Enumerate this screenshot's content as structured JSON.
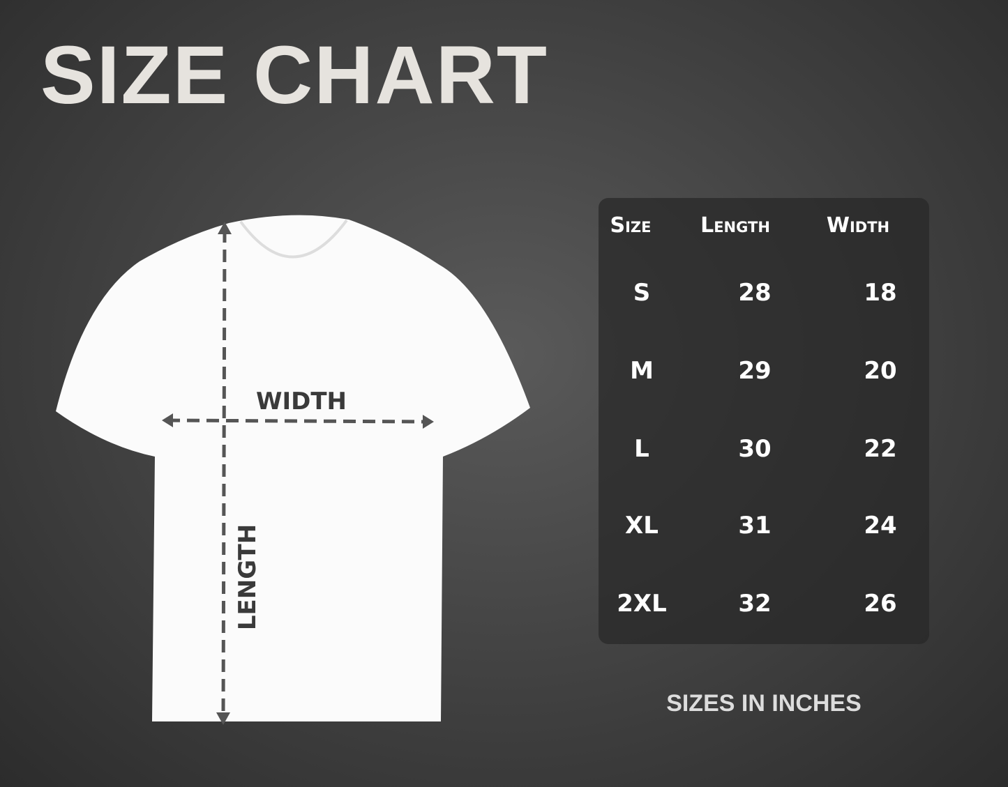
{
  "title": "SIZE CHART",
  "diagram": {
    "width_label": "WIDTH",
    "length_label": "LENGTH"
  },
  "table": {
    "headers": [
      "Size",
      "Length",
      "Width"
    ],
    "rows": [
      [
        "S",
        "28",
        "18"
      ],
      [
        "M",
        "29",
        "20"
      ],
      [
        "L",
        "30",
        "22"
      ],
      [
        "XL",
        "31",
        "24"
      ],
      [
        "2XL",
        "32",
        "26"
      ]
    ]
  },
  "note": "SIZES IN INCHES"
}
